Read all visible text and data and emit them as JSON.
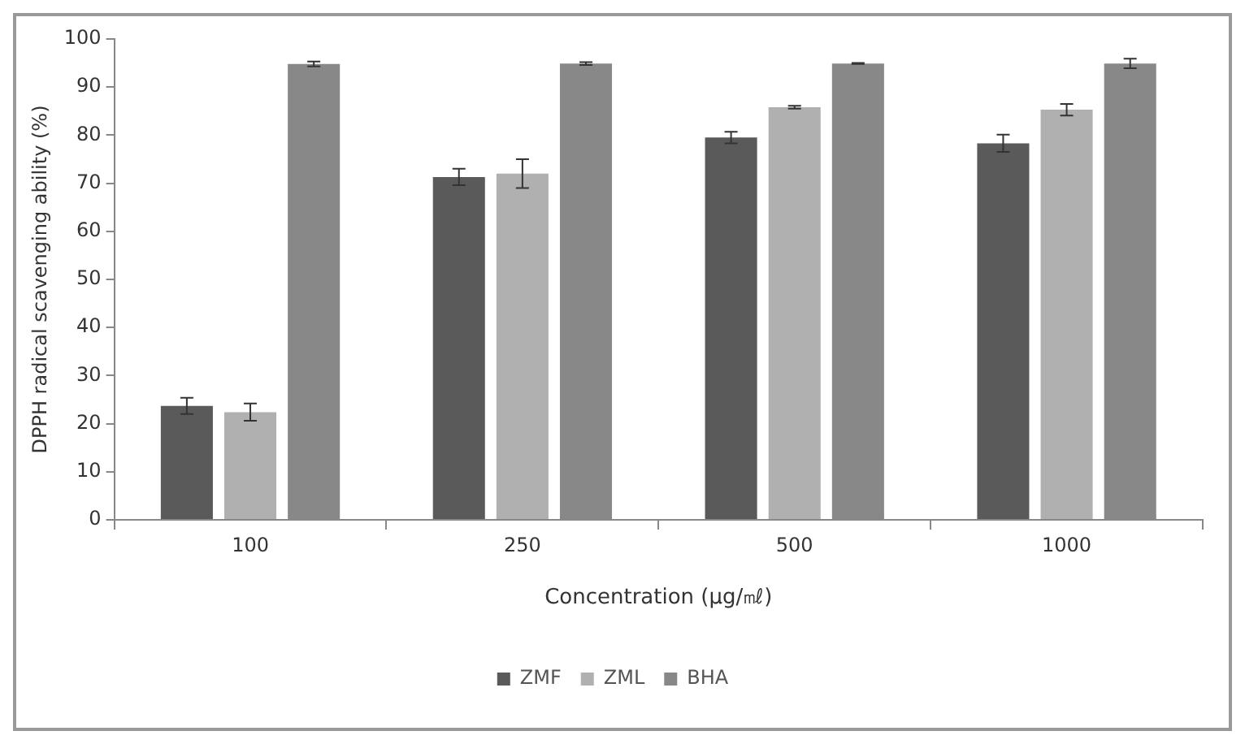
{
  "chart_data": {
    "type": "bar",
    "xlabel": "Concentration (μg/㎖)",
    "ylabel": "DPPH radical scavenging ability (%)",
    "categories": [
      "100",
      "250",
      "500",
      "1000"
    ],
    "series": [
      {
        "name": "ZMF",
        "color": "#5a5a5a",
        "values": [
          23.7,
          71.3,
          79.5,
          78.3
        ],
        "errors": [
          1.7,
          1.7,
          1.2,
          1.8
        ]
      },
      {
        "name": "ZML",
        "color": "#b0b0b0",
        "values": [
          22.4,
          72,
          85.8,
          85.3
        ],
        "errors": [
          1.8,
          3,
          0.3,
          1.2
        ]
      },
      {
        "name": "BHA",
        "color": "#888888",
        "values": [
          94.8,
          94.9,
          94.9,
          94.9
        ],
        "errors": [
          0.5,
          0.3,
          0.1,
          1
        ]
      }
    ],
    "ylim": [
      0,
      100
    ],
    "yticks": [
      0,
      10,
      20,
      30,
      40,
      50,
      60,
      70,
      80,
      90,
      100
    ],
    "grid": false,
    "legend": "bottom"
  }
}
